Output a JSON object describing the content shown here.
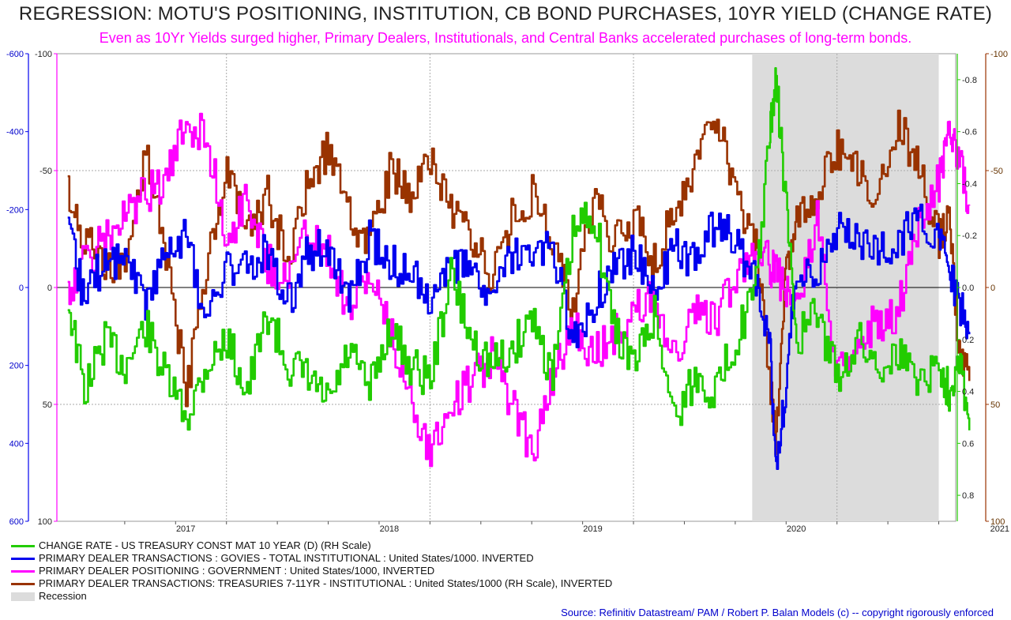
{
  "title": "REGRESSION: MOTU'S POSITIONING, INSTITUTION, CB BOND PURCHASES, 10YR YIELD (CHANGE RATE)",
  "subtitle": "Even as 10Yr Yields surged higher, Primary Dealers, Institutionals, and Central Banks accelerated purchases of long-term bonds.",
  "source": "Source: Refinitiv Datastream/ PAM / Robert P. Balan Models (c) -- copyright rigorously enforced",
  "colors": {
    "green": "#22cc00",
    "blue": "#0000ee",
    "magenta": "#ff00ff",
    "brown": "#993300",
    "recession": "#dcdcdc"
  },
  "chart_data": {
    "type": "line",
    "x_range": [
      "2016-09",
      "2021-02"
    ],
    "x_tick_labels": [
      "2017",
      "2018",
      "2019",
      "2020",
      "2021"
    ],
    "recession": {
      "start": "2020-02",
      "end": "2021-01"
    },
    "axes": {
      "left_outer": {
        "color": "#0000ee",
        "ticks": [
          "-600",
          "-400",
          "-200",
          "0",
          "200",
          "400",
          "600"
        ],
        "range": [
          -600,
          600
        ]
      },
      "left_inner": {
        "color": "#ff00ff",
        "ticks": [
          "-100",
          "-50",
          "0",
          "50",
          "100"
        ],
        "range": [
          -100,
          100
        ]
      },
      "right_inner": {
        "color": "#22cc00",
        "ticks": [
          "0.8",
          "0.6",
          "0.4",
          "0.2",
          "0.0",
          "-0.2",
          "-0.4",
          "-0.6",
          "-0.8"
        ],
        "range": [
          -0.9,
          0.9
        ]
      },
      "right_outer": {
        "color": "#993300",
        "ticks": [
          "-100",
          "-50",
          "0",
          "50",
          "100"
        ],
        "range": [
          -100,
          100
        ]
      }
    },
    "series": [
      {
        "name": "CHANGE RATE - US TREASURY CONST MAT 10 YEAR (D) (RH Scale)",
        "color": "#22cc00",
        "axis": "right_inner",
        "x": [
          2016.72,
          2016.8,
          2016.9,
          2017.0,
          2017.1,
          2017.2,
          2017.3,
          2017.4,
          2017.5,
          2017.6,
          2017.7,
          2017.8,
          2017.9,
          2018.0,
          2018.1,
          2018.2,
          2018.3,
          2018.4,
          2018.5,
          2018.6,
          2018.7,
          2018.8,
          2018.9,
          2019.0,
          2019.1,
          2019.2,
          2019.3,
          2019.4,
          2019.5,
          2019.6,
          2019.7,
          2019.8,
          2019.9,
          2020.0,
          2020.1,
          2020.17,
          2020.2,
          2020.25,
          2020.3,
          2020.4,
          2020.5,
          2020.6,
          2020.7,
          2020.8,
          2020.9,
          2021.0,
          2021.05,
          2021.1,
          2021.15
        ],
        "values": [
          0.05,
          0.4,
          0.2,
          0.3,
          0.15,
          0.35,
          0.5,
          0.3,
          0.2,
          0.4,
          0.1,
          0.3,
          0.35,
          0.45,
          0.25,
          0.4,
          0.15,
          0.3,
          0.35,
          -0.05,
          0.2,
          0.3,
          0.25,
          0.1,
          0.35,
          -0.2,
          -0.3,
          0.15,
          0.3,
          0.1,
          0.5,
          0.35,
          0.4,
          0.2,
          0.0,
          -0.6,
          -0.8,
          -0.3,
          0.2,
          0.1,
          0.35,
          0.2,
          0.3,
          0.25,
          0.35,
          0.3,
          0.4,
          0.25,
          0.55
        ]
      },
      {
        "name": "PRIMARY DEALER TRANSACTIONS : GOVIES - TOTAL INSTITUTIONAL : United States/1000. INVERTED",
        "color": "#0000ee",
        "axis": "left_outer",
        "x": [
          2016.72,
          2016.8,
          2016.9,
          2017.0,
          2017.1,
          2017.2,
          2017.3,
          2017.4,
          2017.5,
          2017.6,
          2017.7,
          2017.8,
          2017.9,
          2018.0,
          2018.1,
          2018.2,
          2018.3,
          2018.4,
          2018.5,
          2018.6,
          2018.7,
          2018.8,
          2018.9,
          2019.0,
          2019.1,
          2019.2,
          2019.3,
          2019.4,
          2019.5,
          2019.6,
          2019.7,
          2019.8,
          2019.9,
          2020.0,
          2020.1,
          2020.17,
          2020.2,
          2020.25,
          2020.3,
          2020.4,
          2020.5,
          2020.6,
          2020.7,
          2020.8,
          2020.9,
          2021.0,
          2021.05,
          2021.1,
          2021.15
        ],
        "values": [
          -130,
          20,
          -70,
          -80,
          30,
          -90,
          -140,
          100,
          -60,
          -40,
          -100,
          40,
          -90,
          -110,
          50,
          -120,
          -60,
          -30,
          20,
          -40,
          -60,
          50,
          -80,
          -70,
          -100,
          150,
          40,
          -60,
          -90,
          20,
          -100,
          -70,
          -160,
          -120,
          -20,
          150,
          450,
          250,
          -60,
          -20,
          -150,
          -130,
          -90,
          -120,
          -180,
          -140,
          -50,
          40,
          120
        ]
      },
      {
        "name": "PRIMARY DEALER POSITIONING : GOVERNMENT : United States/1000, INVERTED",
        "color": "#ff00ff",
        "axis": "left_inner",
        "x": [
          2016.72,
          2016.8,
          2016.9,
          2017.0,
          2017.1,
          2017.2,
          2017.3,
          2017.4,
          2017.5,
          2017.6,
          2017.7,
          2017.8,
          2017.9,
          2018.0,
          2018.1,
          2018.2,
          2018.3,
          2018.4,
          2018.5,
          2018.6,
          2018.7,
          2018.8,
          2018.9,
          2019.0,
          2019.1,
          2019.2,
          2019.3,
          2019.4,
          2019.5,
          2019.6,
          2019.7,
          2019.8,
          2019.9,
          2020.0,
          2020.1,
          2020.17,
          2020.2,
          2020.25,
          2020.3,
          2020.4,
          2020.5,
          2020.6,
          2020.7,
          2020.8,
          2020.9,
          2021.0,
          2021.05,
          2021.1,
          2021.15
        ],
        "values": [
          0,
          -10,
          -20,
          -30,
          -40,
          -45,
          -70,
          -65,
          -20,
          -40,
          -10,
          -5,
          -25,
          -15,
          10,
          -5,
          20,
          45,
          70,
          50,
          40,
          30,
          50,
          70,
          40,
          15,
          30,
          20,
          10,
          5,
          30,
          10,
          15,
          -5,
          -20,
          -10,
          -5,
          0,
          10,
          -30,
          40,
          20,
          15,
          10,
          -30,
          -45,
          -70,
          -55,
          -35
        ]
      },
      {
        "name": "PRIMARY DEALER TRANSACTIONS: TREASURIES 7-11YR - INSTITUTIONAL : United States/1000 (RH Scale), INVERTED",
        "color": "#993300",
        "axis": "right_outer",
        "x": [
          2016.72,
          2016.8,
          2016.9,
          2017.0,
          2017.1,
          2017.2,
          2017.3,
          2017.4,
          2017.5,
          2017.6,
          2017.7,
          2017.8,
          2017.9,
          2018.0,
          2018.1,
          2018.2,
          2018.3,
          2018.4,
          2018.5,
          2018.6,
          2018.7,
          2018.8,
          2018.9,
          2019.0,
          2019.1,
          2019.2,
          2019.3,
          2019.4,
          2019.5,
          2019.6,
          2019.7,
          2019.8,
          2019.9,
          2020.0,
          2020.1,
          2020.17,
          2020.2,
          2020.25,
          2020.3,
          2020.4,
          2020.5,
          2020.6,
          2020.7,
          2020.8,
          2020.9,
          2021.0,
          2021.05,
          2021.1,
          2021.15
        ],
        "values": [
          -40,
          -20,
          -10,
          -5,
          -60,
          -15,
          45,
          -10,
          -50,
          -20,
          -40,
          -10,
          -45,
          -60,
          -30,
          -20,
          -50,
          -40,
          -55,
          -35,
          -20,
          -5,
          -30,
          -40,
          -20,
          10,
          -40,
          -20,
          -30,
          -10,
          -35,
          -50,
          -75,
          -40,
          -20,
          40,
          65,
          -10,
          -30,
          -40,
          -60,
          -50,
          -40,
          -70,
          -50,
          -20,
          -30,
          25,
          40
        ]
      }
    ],
    "legend": {
      "placement": "bottom",
      "items": [
        {
          "label": "CHANGE RATE - US TREASURY CONST MAT 10 YEAR (D) (RH Scale)",
          "color": "#22cc00"
        },
        {
          "label": "PRIMARY DEALER TRANSACTIONS : GOVIES - TOTAL INSTITUTIONAL : United States/1000. INVERTED",
          "color": "#0000ee"
        },
        {
          "label": "PRIMARY DEALER POSITIONING : GOVERNMENT : United States/1000, INVERTED",
          "color": "#ff00ff"
        },
        {
          "label": "PRIMARY DEALER TRANSACTIONS: TREASURIES 7-11YR - INSTITUTIONAL : United States/1000 (RH Scale), INVERTED",
          "color": "#993300"
        },
        {
          "label": "Recession",
          "color": "#dcdcdc"
        }
      ]
    }
  }
}
